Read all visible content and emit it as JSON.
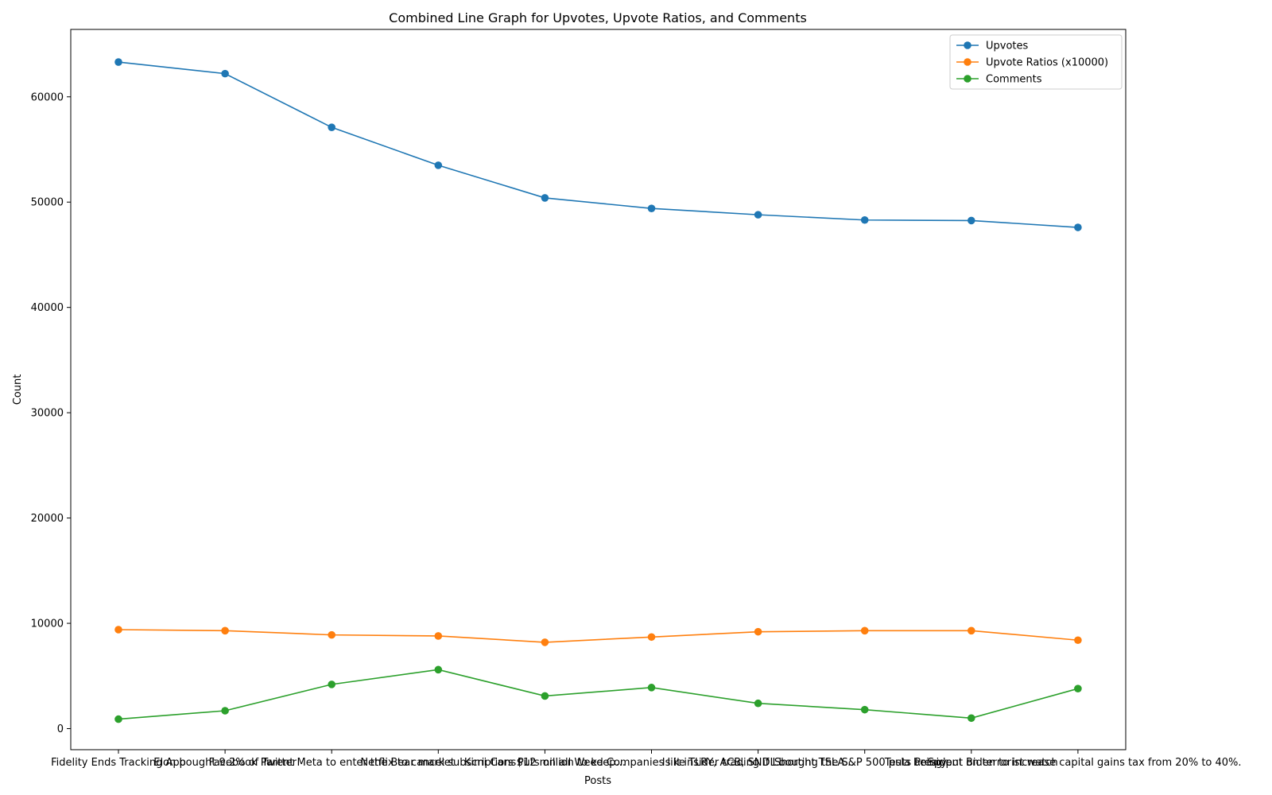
{
  "chart_data": {
    "type": "line",
    "title": "Combined Line Graph for Upvotes, Upvote Ratios, and Comments",
    "xlabel": "Posts",
    "ylabel": "Count",
    "ylim": [
      -2000,
      66400
    ],
    "yticks": [
      0,
      10000,
      20000,
      30000,
      40000,
      50000,
      60000
    ],
    "grid": false,
    "legend_position": "top-right",
    "categories": [
      "Fidelity Ends Tracking App",
      "Elon bought 9.2% of Twitter",
      "Facebook Parent Meta to enter the Bear market",
      "Netflix to cancel subscriptions",
      "Kimi Cars $12 million to keep...",
      "Puts on all Weed Companies like TLRY, ACB, SNDL...",
      "Is it insider trading if I bought TSLA...",
      "Shorting the S&P 500 puts ... Spy...",
      "Tesla being put on terrorist watch",
      "President Biden to increase capital gains tax from 20% to 40%."
    ],
    "series": [
      {
        "name": "Upvotes",
        "color": "#1f77b4",
        "values": [
          63300,
          62200,
          57100,
          53500,
          50400,
          49400,
          48800,
          48300,
          48250,
          47600
        ]
      },
      {
        "name": "Upvote Ratios (x10000)",
        "color": "#ff7f0e",
        "values": [
          9400,
          9300,
          8900,
          8800,
          8200,
          8700,
          9200,
          9300,
          9300,
          8400
        ]
      },
      {
        "name": "Comments",
        "color": "#2ca02c",
        "values": [
          900,
          1700,
          4200,
          5600,
          3100,
          3900,
          2400,
          1800,
          1000,
          3800
        ]
      }
    ]
  }
}
